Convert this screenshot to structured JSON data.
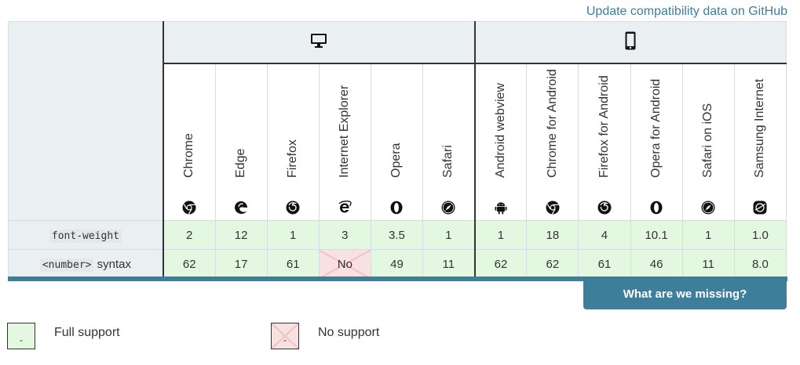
{
  "header": {
    "github_link": "Update compatibility data on GitHub"
  },
  "platforms": [
    {
      "name": "desktop",
      "icon": "desktop-icon"
    },
    {
      "name": "mobile",
      "icon": "mobile-icon"
    }
  ],
  "browsers": [
    {
      "name": "Chrome",
      "icon": "chrome-icon"
    },
    {
      "name": "Edge",
      "icon": "edge-icon"
    },
    {
      "name": "Firefox",
      "icon": "firefox-icon"
    },
    {
      "name": "Internet Explorer",
      "icon": "ie-icon"
    },
    {
      "name": "Opera",
      "icon": "opera-icon"
    },
    {
      "name": "Safari",
      "icon": "safari-icon"
    },
    {
      "name": "Android webview",
      "icon": "android-icon"
    },
    {
      "name": "Chrome for Android",
      "icon": "chrome-icon"
    },
    {
      "name": "Firefox for Android",
      "icon": "firefox-icon"
    },
    {
      "name": "Opera for Android",
      "icon": "opera-icon"
    },
    {
      "name": "Safari on iOS",
      "icon": "safari-icon"
    },
    {
      "name": "Samsung Internet",
      "icon": "samsung-internet-icon"
    }
  ],
  "rows": [
    {
      "feature_code": "font-weight",
      "feature_text": "",
      "cells": [
        "2",
        "12",
        "1",
        "3",
        "3.5",
        "1",
        "1",
        "18",
        "4",
        "10.1",
        "1",
        "1.0"
      ],
      "support": [
        "yes",
        "yes",
        "yes",
        "yes",
        "yes",
        "yes",
        "yes",
        "yes",
        "yes",
        "yes",
        "yes",
        "yes"
      ]
    },
    {
      "feature_code": "<number>",
      "feature_text": " syntax",
      "cells": [
        "62",
        "17",
        "61",
        "No",
        "49",
        "11",
        "62",
        "62",
        "61",
        "46",
        "11",
        "8.0"
      ],
      "support": [
        "yes",
        "yes",
        "yes",
        "no",
        "yes",
        "yes",
        "yes",
        "yes",
        "yes",
        "yes",
        "yes",
        "yes"
      ]
    }
  ],
  "missing_button": "What are we missing?",
  "legend": [
    {
      "symbol": "-",
      "label": "Full support",
      "type": "yes"
    },
    {
      "symbol": "-",
      "label": "No support",
      "type": "no"
    }
  ],
  "colors": {
    "accent": "#3d7e9a",
    "full_support": "#e4f8e1",
    "no_support": "#f8e1e1",
    "header_bg": "#eaeff2"
  }
}
